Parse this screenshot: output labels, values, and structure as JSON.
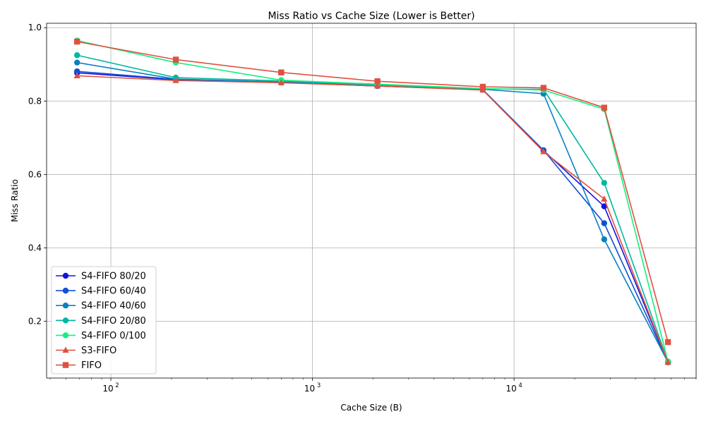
{
  "chart_data": {
    "type": "line",
    "title": "Miss Ratio vs Cache Size (Lower is Better)",
    "xlabel": "Cache Size (B)",
    "ylabel": "Miss Ratio",
    "xscale": "log",
    "xlim": [
      48,
      80000
    ],
    "ylim": [
      0.045,
      1.012
    ],
    "x_ticks": [
      100,
      1000,
      10000
    ],
    "x_tick_labels": [
      "10",
      "10",
      "10"
    ],
    "x_tick_exponents": [
      "2",
      "3",
      "4"
    ],
    "y_ticks": [
      0.2,
      0.4,
      0.6,
      0.8,
      1.0
    ],
    "y_tick_labels": [
      "0.2",
      "0.4",
      "0.6",
      "0.8",
      "1.0"
    ],
    "grid": true,
    "legend_position": "lower-left",
    "x": [
      68,
      210,
      700,
      2100,
      7000,
      14000,
      28000,
      58000
    ],
    "series": [
      {
        "name": "S4-FIFO 80/20",
        "color": "#1212e8",
        "marker": "circle",
        "values": [
          0.877,
          0.858,
          0.851,
          0.841,
          0.831,
          0.665,
          0.513,
          0.088
        ]
      },
      {
        "name": "S4-FIFO 60/40",
        "color": "#1250d2",
        "marker": "circle",
        "values": [
          0.881,
          0.859,
          0.851,
          0.841,
          0.831,
          0.666,
          0.467,
          0.088
        ]
      },
      {
        "name": "S4-FIFO 40/60",
        "color": "#0a7fc5",
        "marker": "circle",
        "values": [
          0.905,
          0.86,
          0.852,
          0.842,
          0.832,
          0.82,
          0.423,
          0.088
        ]
      },
      {
        "name": "S4-FIFO 20/80",
        "color": "#00b8a0",
        "marker": "circle",
        "values": [
          0.925,
          0.864,
          0.855,
          0.844,
          0.833,
          0.832,
          0.577,
          0.09
        ]
      },
      {
        "name": "S4-FIFO 0/100",
        "color": "#14f080",
        "marker": "circle",
        "values": [
          0.965,
          0.905,
          0.857,
          0.846,
          0.834,
          0.83,
          0.778,
          0.09
        ]
      },
      {
        "name": "S3-FIFO",
        "color": "#e05040",
        "marker": "triangle",
        "values": [
          0.869,
          0.856,
          0.85,
          0.841,
          0.83,
          0.662,
          0.533,
          0.088
        ]
      },
      {
        "name": "FIFO",
        "color": "#e05040",
        "marker": "square",
        "values": [
          0.962,
          0.913,
          0.878,
          0.854,
          0.839,
          0.836,
          0.782,
          0.143
        ]
      }
    ]
  }
}
